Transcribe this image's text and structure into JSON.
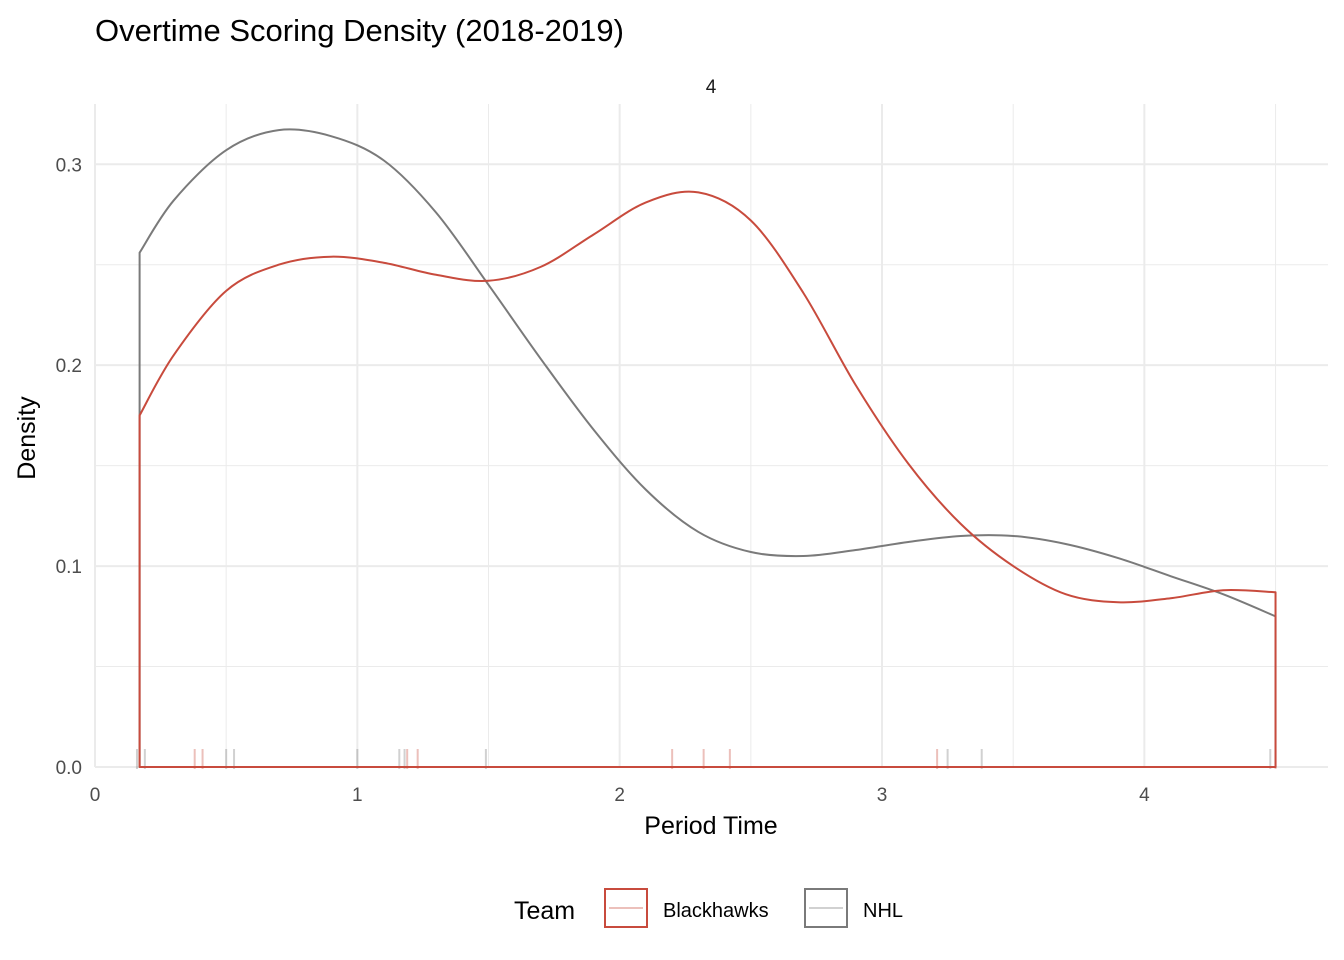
{
  "chart_data": {
    "type": "line",
    "title": "Overtime Scoring Density (2018-2019)",
    "facet_label": "4",
    "xlabel": "Period Time",
    "ylabel": "Density",
    "xlim": [
      0,
      4.7
    ],
    "ylim": [
      0,
      0.33
    ],
    "x_ticks": [
      0,
      1,
      2,
      3,
      4
    ],
    "y_ticks": [
      0.0,
      0.1,
      0.2,
      0.3
    ],
    "x_tick_labels": [
      "0",
      "1",
      "2",
      "3",
      "4"
    ],
    "y_tick_labels": [
      "0.0",
      "0.1",
      "0.2",
      "0.3"
    ],
    "grid": true,
    "legend": {
      "title": "Team",
      "position": "bottom",
      "entries": [
        "Blackhawks",
        "NHL"
      ]
    },
    "colors": {
      "Blackhawks": "#c84b3d",
      "NHL": "#7a7a7a",
      "grid": "#ebebeb"
    },
    "series": [
      {
        "name": "Blackhawks",
        "x": [
          0.17,
          0.3,
          0.5,
          0.7,
          0.9,
          1.1,
          1.3,
          1.5,
          1.7,
          1.9,
          2.1,
          2.3,
          2.5,
          2.7,
          2.9,
          3.1,
          3.3,
          3.5,
          3.7,
          3.9,
          4.1,
          4.3,
          4.5
        ],
        "y": [
          0.175,
          0.205,
          0.237,
          0.25,
          0.254,
          0.251,
          0.245,
          0.242,
          0.249,
          0.265,
          0.281,
          0.286,
          0.272,
          0.236,
          0.19,
          0.151,
          0.121,
          0.1,
          0.086,
          0.082,
          0.084,
          0.088,
          0.087
        ],
        "rug": [
          0.38,
          0.41,
          1.19,
          1.23,
          2.2,
          2.32,
          2.42,
          3.21,
          4.5
        ]
      },
      {
        "name": "NHL",
        "x": [
          0.17,
          0.3,
          0.5,
          0.7,
          0.9,
          1.1,
          1.3,
          1.5,
          1.7,
          1.9,
          2.1,
          2.3,
          2.5,
          2.7,
          2.9,
          3.1,
          3.3,
          3.5,
          3.7,
          3.9,
          4.1,
          4.3,
          4.5
        ],
        "y": [
          0.256,
          0.282,
          0.307,
          0.317,
          0.314,
          0.302,
          0.276,
          0.24,
          0.203,
          0.168,
          0.138,
          0.117,
          0.107,
          0.105,
          0.108,
          0.112,
          0.115,
          0.115,
          0.111,
          0.104,
          0.095,
          0.086,
          0.075
        ],
        "rug": [
          0.16,
          0.19,
          0.5,
          0.53,
          1.0,
          1.16,
          1.18,
          1.49,
          3.25,
          3.38,
          4.48
        ]
      }
    ]
  }
}
